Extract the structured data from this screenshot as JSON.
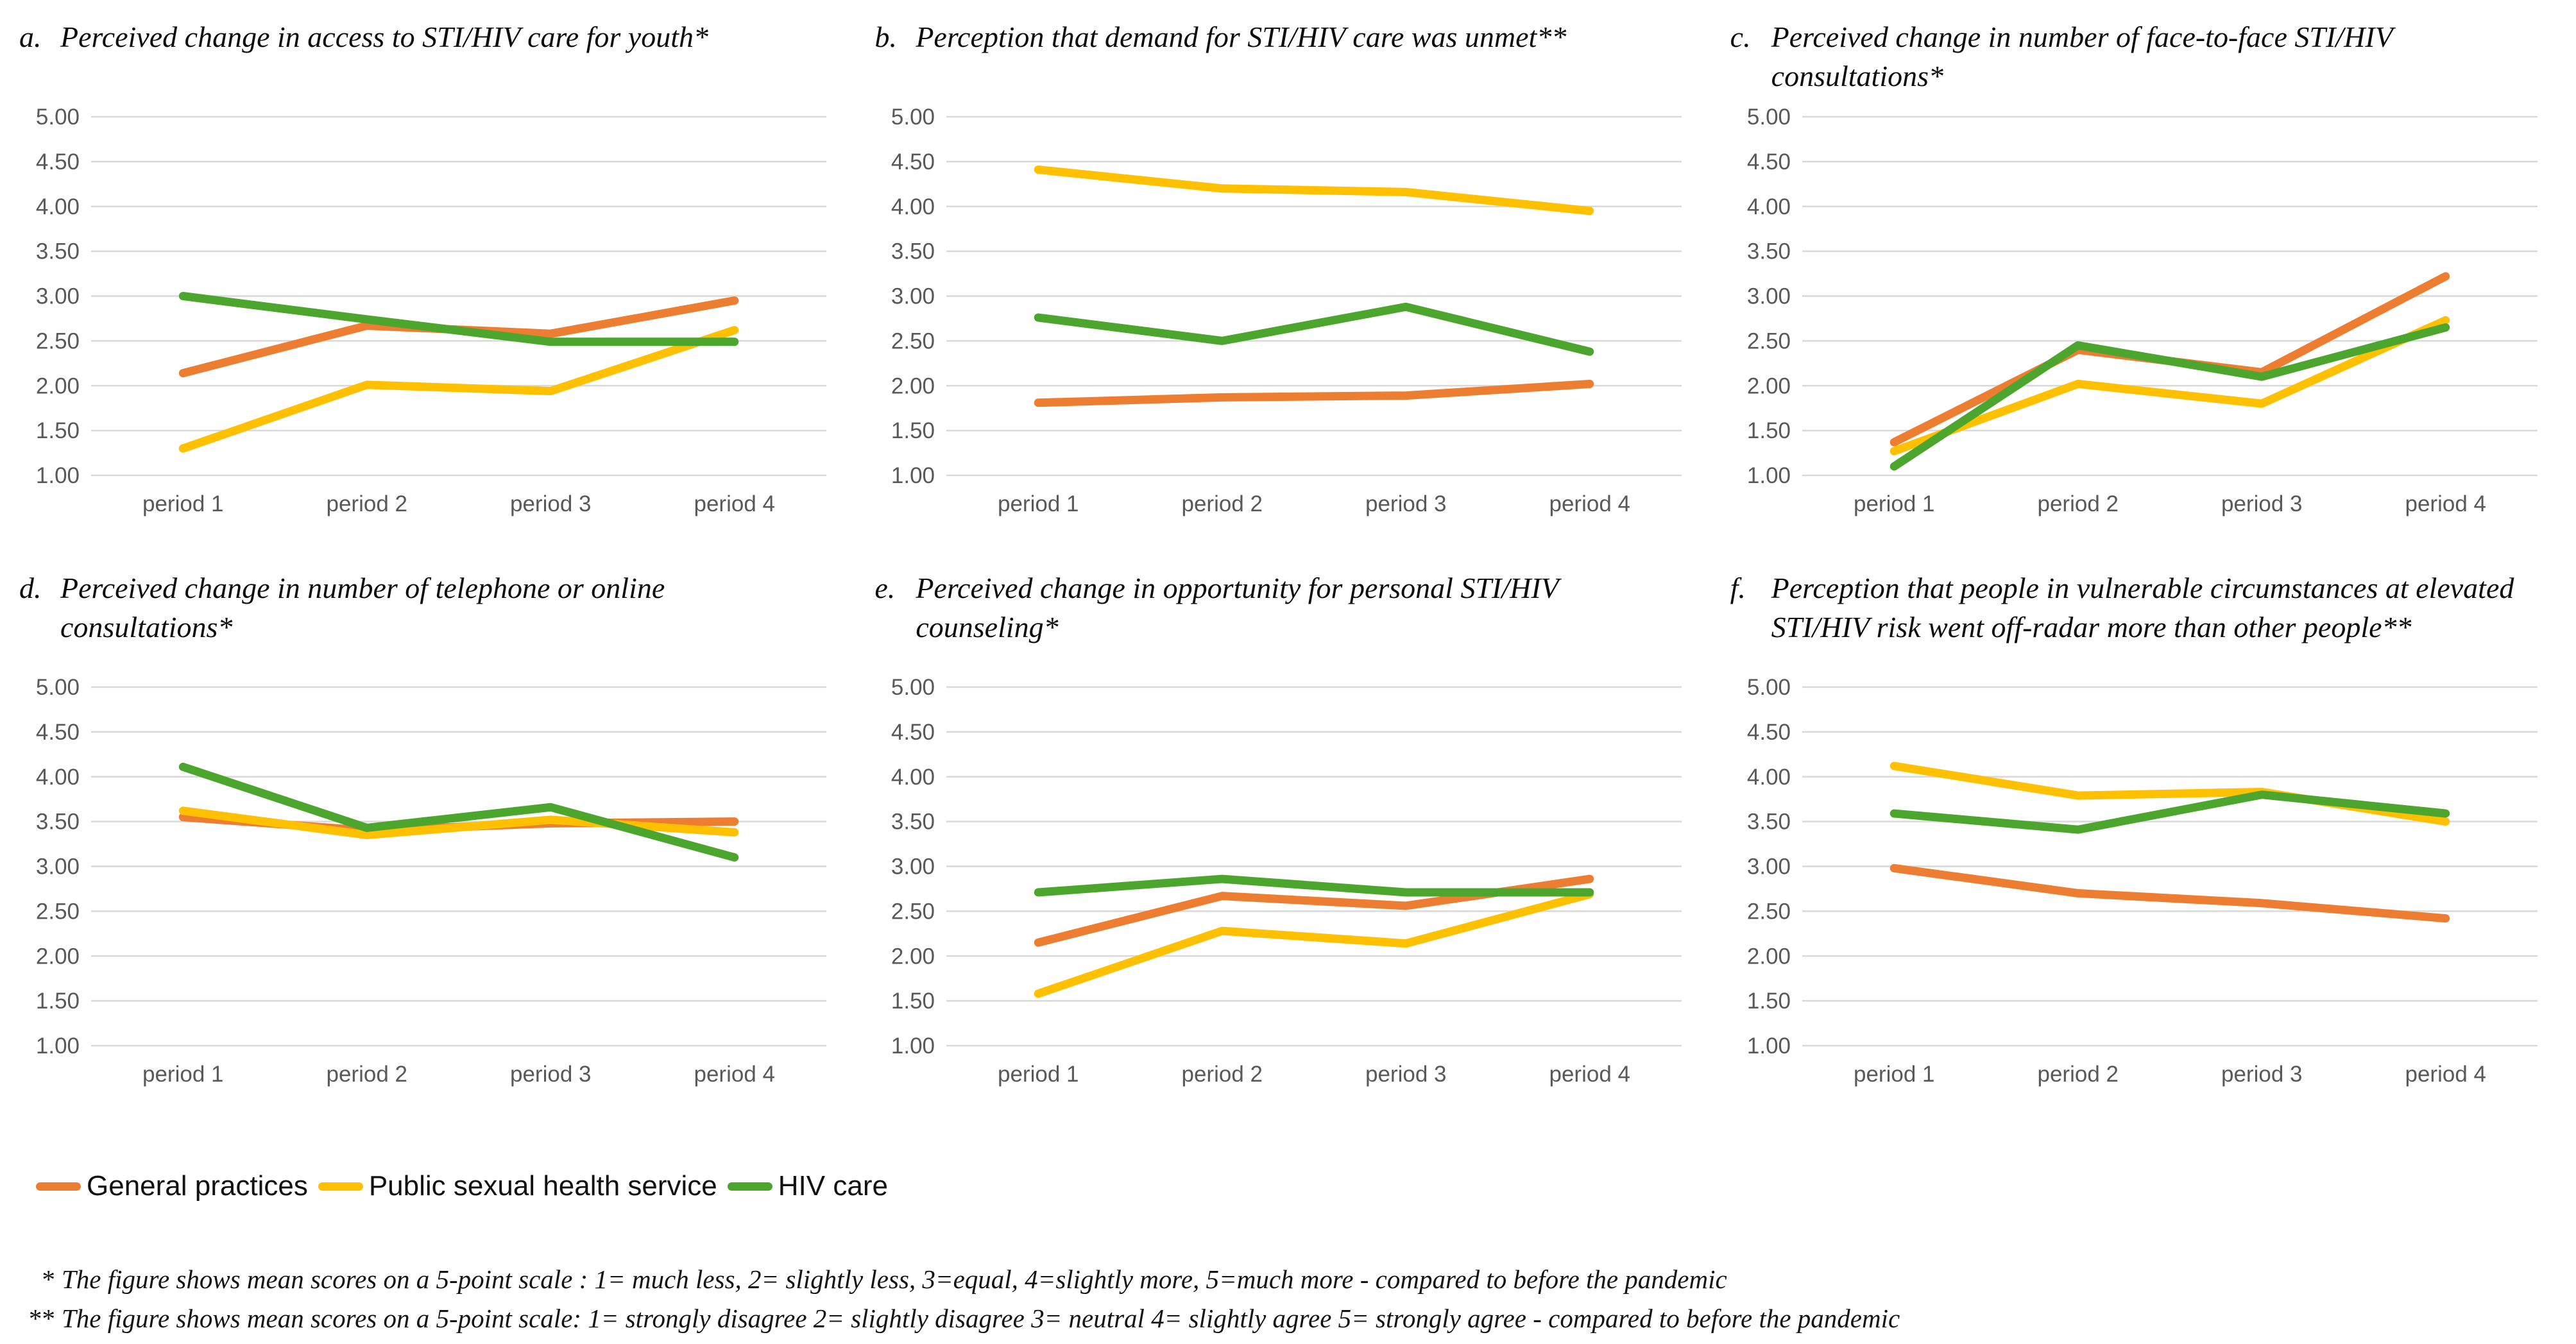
{
  "style": {
    "background": "#ffffff",
    "gridline_color": "#d9d9d9",
    "tick_label_color": "#595959",
    "title_color": "#0d0d0d"
  },
  "legend": {
    "position": "bottom-left",
    "items": [
      {
        "label": "General practices",
        "color": "#ED7D31"
      },
      {
        "label": "Public sexual health service",
        "color": "#FFC000"
      },
      {
        "label": "HIV care",
        "color": "#4CA62E"
      }
    ]
  },
  "footnotes": [
    {
      "marker": "*",
      "text": "The figure shows mean scores on a 5-point scale : 1= much less, 2= slightly less, 3=equal, 4=slightly more, 5=much more - compared to before the pandemic"
    },
    {
      "marker": "**",
      "text": "The figure shows mean scores on a 5-point scale: 1= strongly disagree 2= slightly disagree 3= neutral 4= slightly agree 5= strongly agree - compared to before the pandemic"
    }
  ],
  "chart_data": [
    {
      "type": "line",
      "label": "a.",
      "title": "Perceived change in access to STI/HIV care for youth*",
      "categories": [
        "period 1",
        "period 2",
        "period 3",
        "period 4"
      ],
      "xlabel": "",
      "ylabel": "",
      "ylim": [
        1,
        5
      ],
      "ytick_step": 0.5,
      "grid": true,
      "series": [
        {
          "name": "General practices",
          "color": "#ED7D31",
          "values": [
            2.14,
            2.67,
            2.58,
            2.95
          ]
        },
        {
          "name": "Public sexual health service",
          "color": "#FFC000",
          "values": [
            1.3,
            2.01,
            1.94,
            2.62
          ]
        },
        {
          "name": "HIV care",
          "color": "#4CA62E",
          "values": [
            3.0,
            2.74,
            2.49,
            2.49
          ]
        }
      ]
    },
    {
      "type": "line",
      "label": "b.",
      "title": "Perception that demand for STI/HIV care was unmet**",
      "categories": [
        "period 1",
        "period 2",
        "period 3",
        "period 4"
      ],
      "xlabel": "",
      "ylabel": "",
      "ylim": [
        1,
        5
      ],
      "ytick_step": 0.5,
      "grid": true,
      "series": [
        {
          "name": "General practices",
          "color": "#ED7D31",
          "values": [
            1.81,
            1.87,
            1.89,
            2.02
          ]
        },
        {
          "name": "Public sexual health service",
          "color": "#FFC000",
          "values": [
            4.41,
            4.2,
            4.16,
            3.95
          ]
        },
        {
          "name": "HIV care",
          "color": "#4CA62E",
          "values": [
            2.76,
            2.5,
            2.88,
            2.38
          ]
        }
      ]
    },
    {
      "type": "line",
      "label": "c.",
      "title": "Perceived change in number of face-to-face STI/HIV consultations*",
      "categories": [
        "period 1",
        "period 2",
        "period 3",
        "period 4"
      ],
      "xlabel": "",
      "ylabel": "",
      "ylim": [
        1,
        5
      ],
      "ytick_step": 0.5,
      "grid": true,
      "series": [
        {
          "name": "General practices",
          "color": "#ED7D31",
          "values": [
            1.37,
            2.4,
            2.15,
            3.22
          ]
        },
        {
          "name": "Public sexual health service",
          "color": "#FFC000",
          "values": [
            1.27,
            2.02,
            1.8,
            2.73
          ]
        },
        {
          "name": "HIV care",
          "color": "#4CA62E",
          "values": [
            1.1,
            2.45,
            2.1,
            2.65
          ]
        }
      ]
    },
    {
      "type": "line",
      "label": "d.",
      "title": "Perceived change in number of telephone or online consultations*",
      "categories": [
        "period 1",
        "period 2",
        "period 3",
        "period 4"
      ],
      "xlabel": "",
      "ylabel": "",
      "ylim": [
        1,
        5
      ],
      "ytick_step": 0.5,
      "grid": true,
      "series": [
        {
          "name": "General practices",
          "color": "#ED7D31",
          "values": [
            3.55,
            3.4,
            3.48,
            3.5
          ]
        },
        {
          "name": "Public sexual health service",
          "color": "#FFC000",
          "values": [
            3.62,
            3.35,
            3.52,
            3.38
          ]
        },
        {
          "name": "HIV care",
          "color": "#4CA62E",
          "values": [
            4.11,
            3.43,
            3.66,
            3.1
          ]
        }
      ]
    },
    {
      "type": "line",
      "label": "e.",
      "title": "Perceived change in opportunity for personal STI/HIV counseling*",
      "categories": [
        "period 1",
        "period 2",
        "period 3",
        "period 4"
      ],
      "xlabel": "",
      "ylabel": "",
      "ylim": [
        1,
        5
      ],
      "ytick_step": 0.5,
      "grid": true,
      "series": [
        {
          "name": "General practices",
          "color": "#ED7D31",
          "values": [
            2.15,
            2.67,
            2.56,
            2.86
          ]
        },
        {
          "name": "Public sexual health service",
          "color": "#FFC000",
          "values": [
            1.58,
            2.28,
            2.14,
            2.69
          ]
        },
        {
          "name": "HIV care",
          "color": "#4CA62E",
          "values": [
            2.71,
            2.86,
            2.71,
            2.71
          ]
        }
      ]
    },
    {
      "type": "line",
      "label": "f.",
      "title": "Perception that people in vulnerable circumstances at elevated STI/HIV risk went off-radar more than other people**",
      "categories": [
        "period 1",
        "period 2",
        "period 3",
        "period 4"
      ],
      "xlabel": "",
      "ylabel": "",
      "ylim": [
        1,
        5
      ],
      "ytick_step": 0.5,
      "grid": true,
      "series": [
        {
          "name": "General practices",
          "color": "#ED7D31",
          "values": [
            2.98,
            2.7,
            2.59,
            2.42
          ]
        },
        {
          "name": "Public sexual health service",
          "color": "#FFC000",
          "values": [
            4.12,
            3.79,
            3.83,
            3.5
          ]
        },
        {
          "name": "HIV care",
          "color": "#4CA62E",
          "values": [
            3.59,
            3.41,
            3.8,
            3.59
          ]
        }
      ]
    }
  ]
}
